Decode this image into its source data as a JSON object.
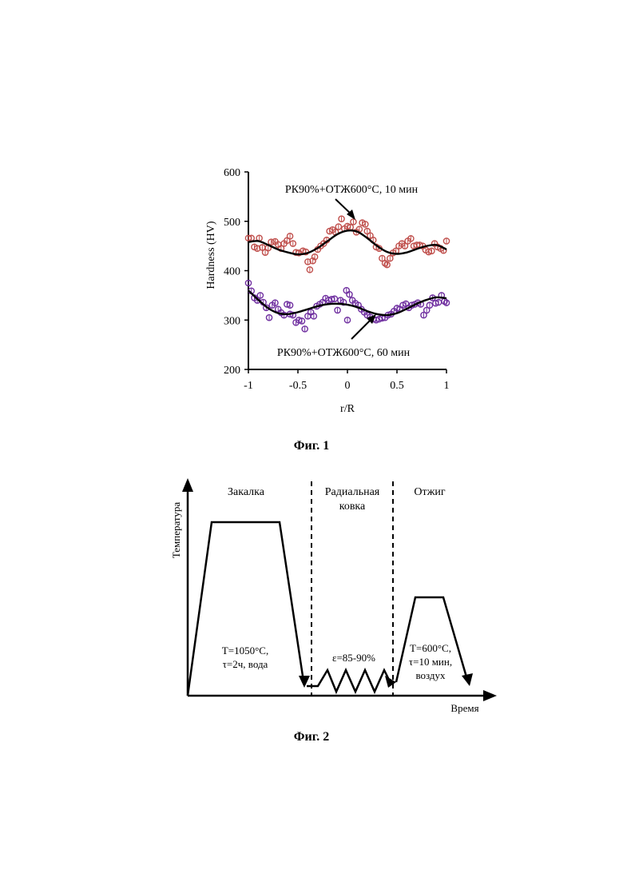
{
  "figure1": {
    "caption": "Фиг. 1",
    "chart_data": {
      "type": "scatter",
      "ylabel": "Hardness (HV)",
      "xlabel": "r/R",
      "xlim": [
        -1,
        1
      ],
      "ylim": [
        200,
        600
      ],
      "xticks": [
        "-1",
        "-0.5",
        "0",
        "0.5",
        "1"
      ],
      "yticks": [
        "200",
        "300",
        "400",
        "500",
        "600"
      ],
      "grid": false,
      "annotations": [
        "РК90%+ОТЖ600°С, 10 мин",
        "РК90%+ОТЖ600°С, 60 мин"
      ],
      "series": [
        {
          "color": "#c0504d",
          "points": [
            [
              -1.0,
              466
            ],
            [
              -0.97,
              466
            ],
            [
              -0.94,
              448
            ],
            [
              -0.91,
              445
            ],
            [
              -0.89,
              466
            ],
            [
              -0.86,
              447
            ],
            [
              -0.83,
              437
            ],
            [
              -0.8,
              446
            ],
            [
              -0.77,
              458
            ],
            [
              -0.73,
              459
            ],
            [
              -0.7,
              453
            ],
            [
              -0.67,
              445
            ],
            [
              -0.64,
              455
            ],
            [
              -0.61,
              461
            ],
            [
              -0.58,
              470
            ],
            [
              -0.55,
              455
            ],
            [
              -0.52,
              437
            ],
            [
              -0.49,
              436
            ],
            [
              -0.45,
              440
            ],
            [
              -0.42,
              438
            ],
            [
              -0.4,
              418
            ],
            [
              -0.38,
              402
            ],
            [
              -0.35,
              420
            ],
            [
              -0.33,
              428
            ],
            [
              -0.3,
              443
            ],
            [
              -0.27,
              450
            ],
            [
              -0.24,
              455
            ],
            [
              -0.21,
              462
            ],
            [
              -0.18,
              480
            ],
            [
              -0.15,
              483
            ],
            [
              -0.12,
              478
            ],
            [
              -0.09,
              489
            ],
            [
              -0.06,
              505
            ],
            [
              -0.03,
              485
            ],
            [
              0.0,
              490
            ],
            [
              0.03,
              488
            ],
            [
              0.06,
              499
            ],
            [
              0.09,
              478
            ],
            [
              0.12,
              484
            ],
            [
              0.15,
              497
            ],
            [
              0.18,
              494
            ],
            [
              0.2,
              480
            ],
            [
              0.23,
              471
            ],
            [
              0.26,
              462
            ],
            [
              0.29,
              448
            ],
            [
              0.32,
              445
            ],
            [
              0.35,
              425
            ],
            [
              0.38,
              415
            ],
            [
              0.4,
              412
            ],
            [
              0.43,
              425
            ],
            [
              0.46,
              436
            ],
            [
              0.49,
              440
            ],
            [
              0.52,
              450
            ],
            [
              0.55,
              455
            ],
            [
              0.58,
              450
            ],
            [
              0.61,
              460
            ],
            [
              0.64,
              465
            ],
            [
              0.67,
              450
            ],
            [
              0.7,
              452
            ],
            [
              0.73,
              452
            ],
            [
              0.76,
              450
            ],
            [
              0.79,
              442
            ],
            [
              0.82,
              438
            ],
            [
              0.85,
              440
            ],
            [
              0.88,
              455
            ],
            [
              0.91,
              448
            ],
            [
              0.94,
              445
            ],
            [
              0.97,
              441
            ],
            [
              1.0,
              460
            ]
          ],
          "fit": [
            [
              -1.0,
              458
            ],
            [
              -0.9,
              460
            ],
            [
              -0.8,
              452
            ],
            [
              -0.7,
              443
            ],
            [
              -0.6,
              437
            ],
            [
              -0.5,
              433
            ],
            [
              -0.4,
              436
            ],
            [
              -0.3,
              446
            ],
            [
              -0.2,
              460
            ],
            [
              -0.1,
              474
            ],
            [
              0.0,
              481
            ],
            [
              0.1,
              479
            ],
            [
              0.2,
              466
            ],
            [
              0.3,
              450
            ],
            [
              0.4,
              438
            ],
            [
              0.5,
              434
            ],
            [
              0.6,
              437
            ],
            [
              0.7,
              444
            ],
            [
              0.8,
              450
            ],
            [
              0.9,
              452
            ],
            [
              1.0,
              443
            ]
          ]
        },
        {
          "color": "#7030a0",
          "points": [
            [
              -1.0,
              375
            ],
            [
              -0.97,
              359
            ],
            [
              -0.94,
              345
            ],
            [
              -0.91,
              340
            ],
            [
              -0.88,
              350
            ],
            [
              -0.85,
              336
            ],
            [
              -0.82,
              325
            ],
            [
              -0.79,
              305
            ],
            [
              -0.76,
              330
            ],
            [
              -0.73,
              335
            ],
            [
              -0.7,
              322
            ],
            [
              -0.67,
              315
            ],
            [
              -0.64,
              310
            ],
            [
              -0.61,
              332
            ],
            [
              -0.58,
              330
            ],
            [
              -0.55,
              310
            ],
            [
              -0.52,
              295
            ],
            [
              -0.49,
              300
            ],
            [
              -0.46,
              298
            ],
            [
              -0.43,
              282
            ],
            [
              -0.4,
              308
            ],
            [
              -0.37,
              316
            ],
            [
              -0.34,
              308
            ],
            [
              -0.31,
              328
            ],
            [
              -0.28,
              332
            ],
            [
              -0.25,
              336
            ],
            [
              -0.22,
              344
            ],
            [
              -0.19,
              340
            ],
            [
              -0.16,
              342
            ],
            [
              -0.13,
              343
            ],
            [
              -0.1,
              320
            ],
            [
              -0.07,
              340
            ],
            [
              -0.04,
              336
            ],
            [
              -0.01,
              360
            ],
            [
              0.02,
              352
            ],
            [
              0.05,
              340
            ],
            [
              0.08,
              334
            ],
            [
              0.11,
              330
            ],
            [
              0.14,
              322
            ],
            [
              0.17,
              316
            ],
            [
              0.2,
              310
            ],
            [
              0.23,
              306
            ],
            [
              0.26,
              302
            ],
            [
              0.29,
              300
            ],
            [
              0.32,
              302
            ],
            [
              0.35,
              304
            ],
            [
              0.38,
              305
            ],
            [
              0.41,
              310
            ],
            [
              0.44,
              312
            ],
            [
              0.47,
              318
            ],
            [
              0.5,
              324
            ],
            [
              0.53,
              322
            ],
            [
              0.56,
              330
            ],
            [
              0.59,
              333
            ],
            [
              0.62,
              325
            ],
            [
              0.65,
              330
            ],
            [
              0.68,
              332
            ],
            [
              0.71,
              335
            ],
            [
              0.74,
              332
            ],
            [
              0.77,
              310
            ],
            [
              0.8,
              320
            ],
            [
              0.83,
              330
            ],
            [
              0.86,
              345
            ],
            [
              0.89,
              334
            ],
            [
              0.92,
              336
            ],
            [
              0.95,
              350
            ],
            [
              0.98,
              338
            ],
            [
              1.0,
              335
            ],
            [
              0.0,
              300
            ],
            [
              -0.58,
              312
            ]
          ],
          "fit": [
            [
              -1.0,
              360
            ],
            [
              -0.9,
              341
            ],
            [
              -0.8,
              324
            ],
            [
              -0.7,
              314
            ],
            [
              -0.6,
              312
            ],
            [
              -0.5,
              316
            ],
            [
              -0.4,
              322
            ],
            [
              -0.3,
              328
            ],
            [
              -0.2,
              332
            ],
            [
              -0.1,
              333
            ],
            [
              0.0,
              331
            ],
            [
              0.1,
              326
            ],
            [
              0.2,
              318
            ],
            [
              0.3,
              312
            ],
            [
              0.4,
              310
            ],
            [
              0.5,
              314
            ],
            [
              0.6,
              323
            ],
            [
              0.7,
              333
            ],
            [
              0.8,
              341
            ],
            [
              0.9,
              346
            ],
            [
              1.0,
              344
            ]
          ]
        }
      ]
    }
  },
  "figure2": {
    "caption": "Фиг. 2",
    "y_axis_label": "Температура",
    "x_axis_label": "Время",
    "stages": {
      "quench": "Закалка",
      "forging_line1": "Радиальная",
      "forging_line2": "ковка",
      "anneal": "Отжиг"
    },
    "notes": {
      "quench_line1": "Т=1050°С,",
      "quench_line2": "τ=2ч, вода",
      "forging": "ε=85-90%",
      "anneal_line1": "Т=600°С,",
      "anneal_line2": "τ=10 мин,",
      "anneal_line3": "воздух"
    }
  }
}
